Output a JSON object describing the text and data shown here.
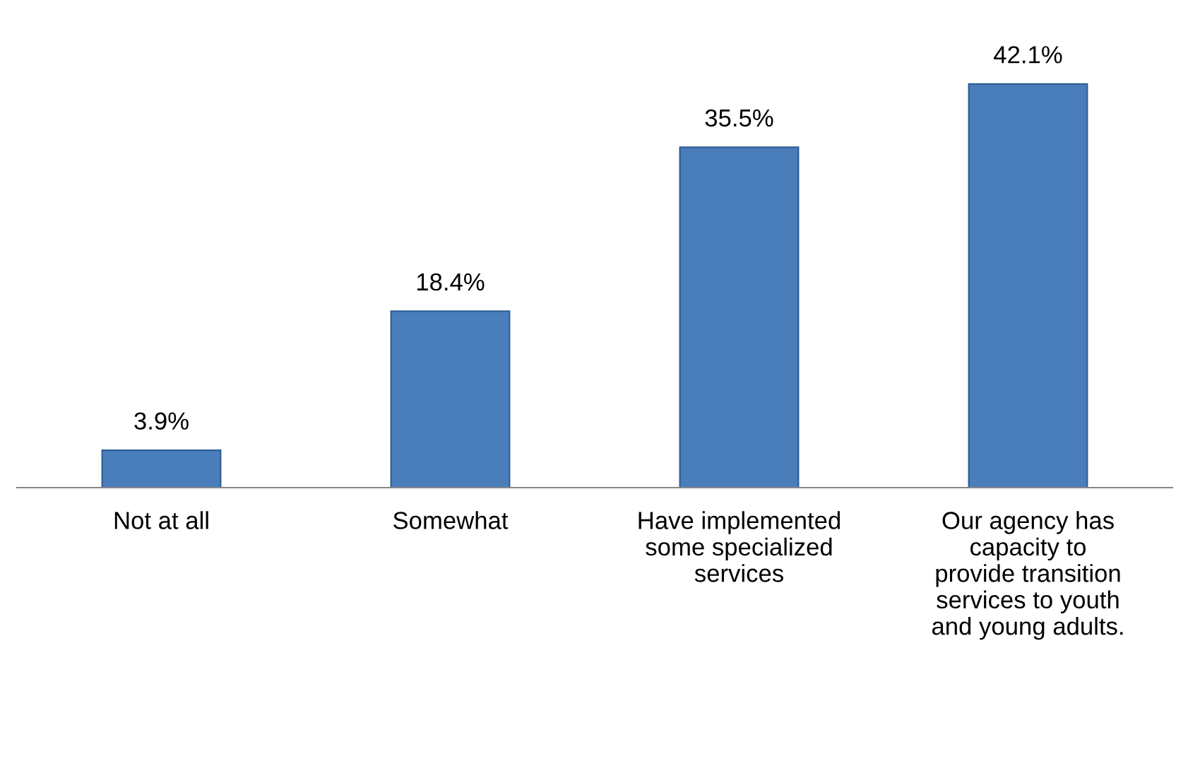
{
  "chart_data": {
    "type": "bar",
    "categories": [
      "Not at all",
      "Somewhat",
      "Have implemented some specialized services",
      "Our agency has capacity to provide transition services to youth and young adults."
    ],
    "values": [
      3.9,
      18.4,
      35.5,
      42.1
    ],
    "value_labels": [
      "3.9%",
      "18.4%",
      "35.5%",
      "42.1%"
    ],
    "color": "#4a7ebb",
    "grid": false,
    "legend": false,
    "tick_labels": "x"
  }
}
